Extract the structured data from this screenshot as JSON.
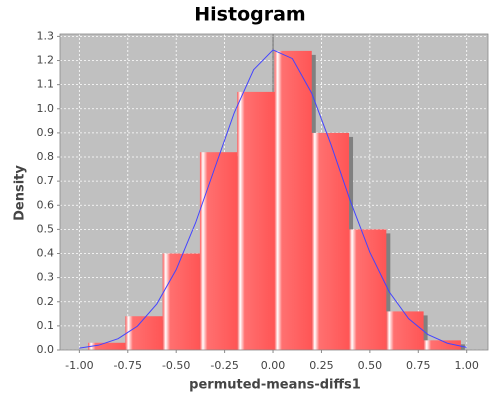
{
  "chart_data": {
    "type": "histogram",
    "title": "Histogram",
    "x_label": "permuted-means-diffs1",
    "y_label": "Density",
    "bins": [
      -0.955,
      -0.7625,
      -0.57,
      -0.3775,
      -0.185,
      0.0075,
      0.2,
      0.3925,
      0.585,
      0.7775,
      0.97
    ],
    "values": [
      0.03,
      0.14,
      0.4,
      0.82,
      1.07,
      1.24,
      0.9,
      0.5,
      0.16,
      0.04
    ],
    "color": "#ff5555",
    "density_curve": {
      "color": "#4444ff",
      "x": [
        -1.0,
        -0.9,
        -0.8,
        -0.7,
        -0.6,
        -0.5,
        -0.4,
        -0.3,
        -0.2,
        -0.1,
        0,
        0.1,
        0.2,
        0.3,
        0.4,
        0.5,
        0.6,
        0.7,
        0.8,
        0.9,
        1.0
      ],
      "values": [
        0.008,
        0.02,
        0.047,
        0.099,
        0.191,
        0.333,
        0.527,
        0.756,
        0.984,
        1.162,
        1.244,
        1.208,
        1.064,
        0.85,
        0.616,
        0.405,
        0.241,
        0.13,
        0.064,
        0.028,
        0.011
      ]
    },
    "xlim": [
      -1.1,
      1.11
    ],
    "ylim": [
      0,
      1.31
    ],
    "xticks": [
      {
        "value": -1,
        "label": "-1.00"
      },
      {
        "value": -0.75,
        "label": "-0.75"
      },
      {
        "value": -0.5,
        "label": "-0.50"
      },
      {
        "value": -0.25,
        "label": "-0.25"
      },
      {
        "value": 0,
        "label": "0.00"
      },
      {
        "value": 0.25,
        "label": "0.25"
      },
      {
        "value": 0.5,
        "label": "0.50"
      },
      {
        "value": 0.75,
        "label": "0.75"
      },
      {
        "value": 1,
        "label": "1.00"
      }
    ],
    "yticks": [
      {
        "value": 0,
        "label": "0.0"
      },
      0.1,
      0.2,
      0.3,
      0.4,
      0.5,
      0.6,
      0.7,
      0.8,
      0.9,
      {
        "value": 1,
        "label": "1.0"
      },
      1.1,
      1.2,
      1.3
    ],
    "grid": true,
    "plot_background": "#c0c0c0"
  }
}
